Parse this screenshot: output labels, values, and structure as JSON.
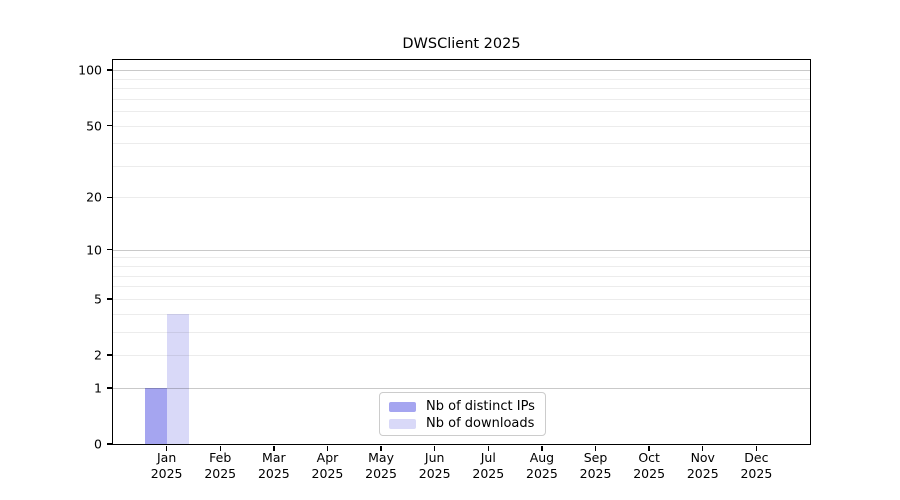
{
  "colors": {
    "distinct_ips": "#a5a5f0",
    "downloads": "#d9d9f8",
    "grid_minor": "#ececec",
    "grid_major": "#c9c9c9",
    "axis": "#000000",
    "legend_border": "#cccccc",
    "text": "#000000"
  },
  "legend": {
    "position": "lower center"
  },
  "chart_data": {
    "type": "bar",
    "title": "DWSClient 2025",
    "x_categories": [
      {
        "month": "Jan",
        "year": "2025"
      },
      {
        "month": "Feb",
        "year": "2025"
      },
      {
        "month": "Mar",
        "year": "2025"
      },
      {
        "month": "Apr",
        "year": "2025"
      },
      {
        "month": "May",
        "year": "2025"
      },
      {
        "month": "Jun",
        "year": "2025"
      },
      {
        "month": "Jul",
        "year": "2025"
      },
      {
        "month": "Aug",
        "year": "2025"
      },
      {
        "month": "Sep",
        "year": "2025"
      },
      {
        "month": "Oct",
        "year": "2025"
      },
      {
        "month": "Nov",
        "year": "2025"
      },
      {
        "month": "Dec",
        "year": "2025"
      }
    ],
    "series": [
      {
        "name": "Nb of distinct IPs",
        "color_key": "distinct_ips",
        "values": [
          1,
          0,
          0,
          0,
          0,
          0,
          0,
          0,
          0,
          0,
          0,
          0
        ]
      },
      {
        "name": "Nb of downloads",
        "color_key": "downloads",
        "values": [
          4,
          0,
          0,
          0,
          0,
          0,
          0,
          0,
          0,
          0,
          0,
          0
        ]
      }
    ],
    "y_scale": "log10(1+y)",
    "ylim": [
      0,
      113.5
    ],
    "y_ticks": [
      0,
      1,
      2,
      5,
      10,
      20,
      50,
      100
    ],
    "grid_minor_values": [
      2,
      3,
      4,
      5,
      6,
      7,
      8,
      9,
      20,
      30,
      40,
      50,
      60,
      70,
      80,
      90
    ],
    "grid_major_values": [
      1,
      10,
      100
    ],
    "grid": true,
    "legend_position": "lower center"
  }
}
